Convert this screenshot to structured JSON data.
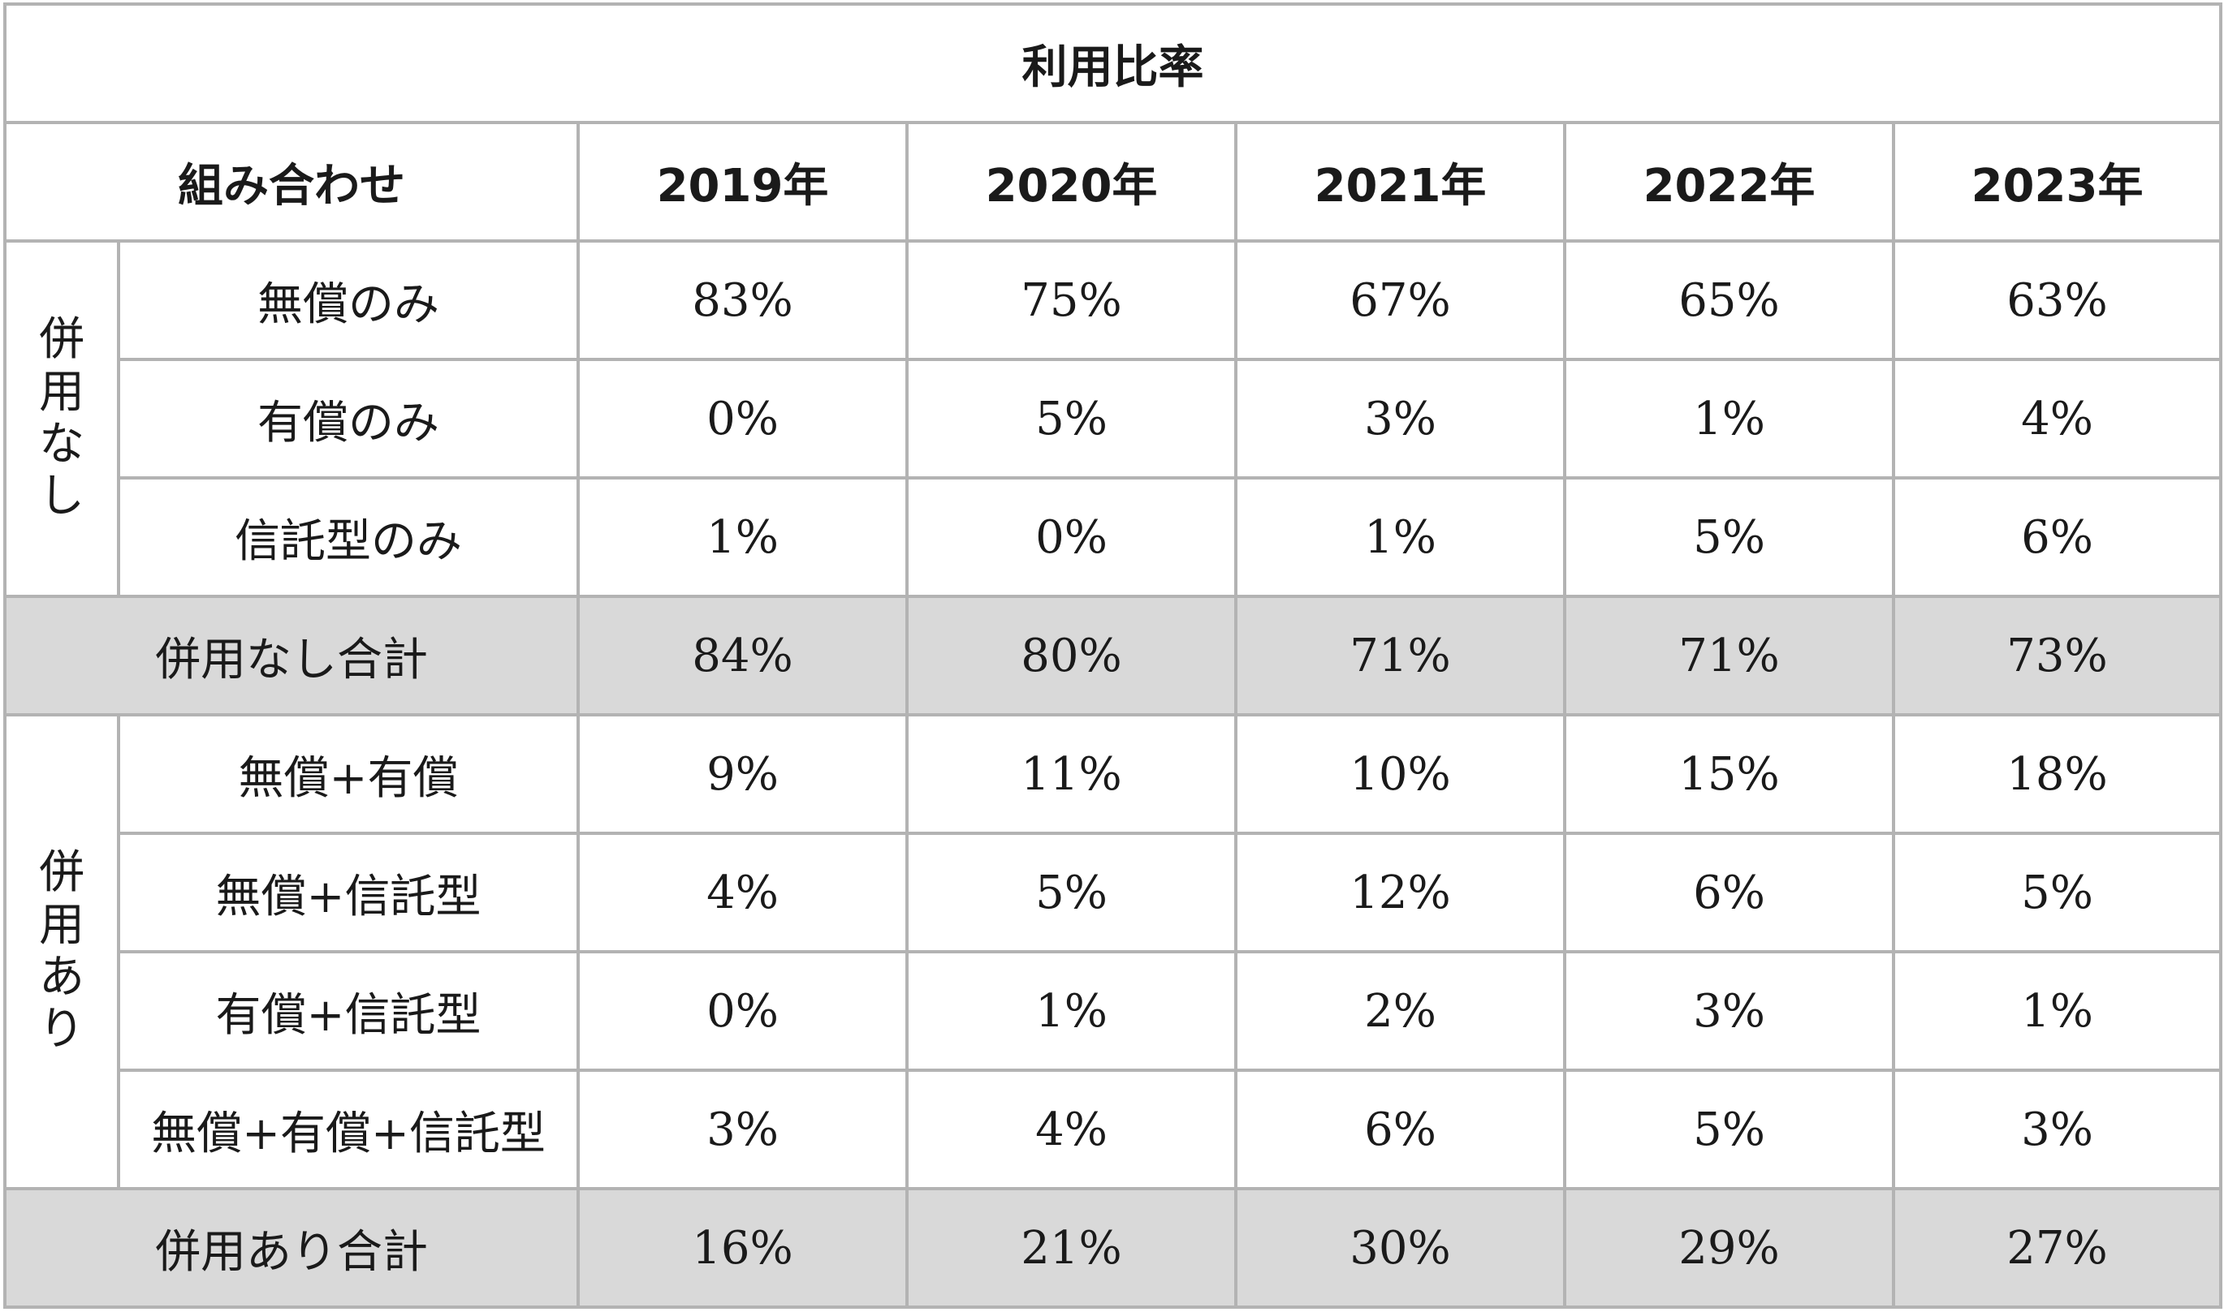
{
  "title": "利用比率",
  "header": {
    "combination": "組み合わせ",
    "years": [
      "2019年",
      "2020年",
      "2021年",
      "2022年",
      "2023年"
    ]
  },
  "groups": {
    "none": {
      "label_chars": [
        "併",
        "用",
        "な",
        "し"
      ],
      "rows": [
        {
          "label": "無償のみ",
          "values": [
            "83%",
            "75%",
            "67%",
            "65%",
            "63%"
          ]
        },
        {
          "label": "有償のみ",
          "values": [
            "0%",
            "5%",
            "3%",
            "1%",
            "4%"
          ]
        },
        {
          "label": "信託型のみ",
          "values": [
            "1%",
            "0%",
            "1%",
            "5%",
            "6%"
          ]
        }
      ],
      "subtotal": {
        "label": "併用なし合計",
        "values": [
          "84%",
          "80%",
          "71%",
          "71%",
          "73%"
        ]
      }
    },
    "combined": {
      "label_chars": [
        "併",
        "用",
        "あ",
        "り"
      ],
      "rows": [
        {
          "label": "無償+有償",
          "values": [
            "9%",
            "11%",
            "10%",
            "15%",
            "18%"
          ]
        },
        {
          "label": "無償+信託型",
          "values": [
            "4%",
            "5%",
            "12%",
            "6%",
            "5%"
          ]
        },
        {
          "label": "有償+信託型",
          "values": [
            "0%",
            "1%",
            "2%",
            "3%",
            "1%"
          ]
        },
        {
          "label": "無償+有償+信託型",
          "values": [
            "3%",
            "4%",
            "6%",
            "5%",
            "3%"
          ]
        }
      ],
      "subtotal": {
        "label": "併用あり合計",
        "values": [
          "16%",
          "21%",
          "30%",
          "29%",
          "27%"
        ]
      }
    }
  },
  "colors": {
    "border": "#b3b3b3",
    "subtotal_bg": "#d9d9d9"
  }
}
